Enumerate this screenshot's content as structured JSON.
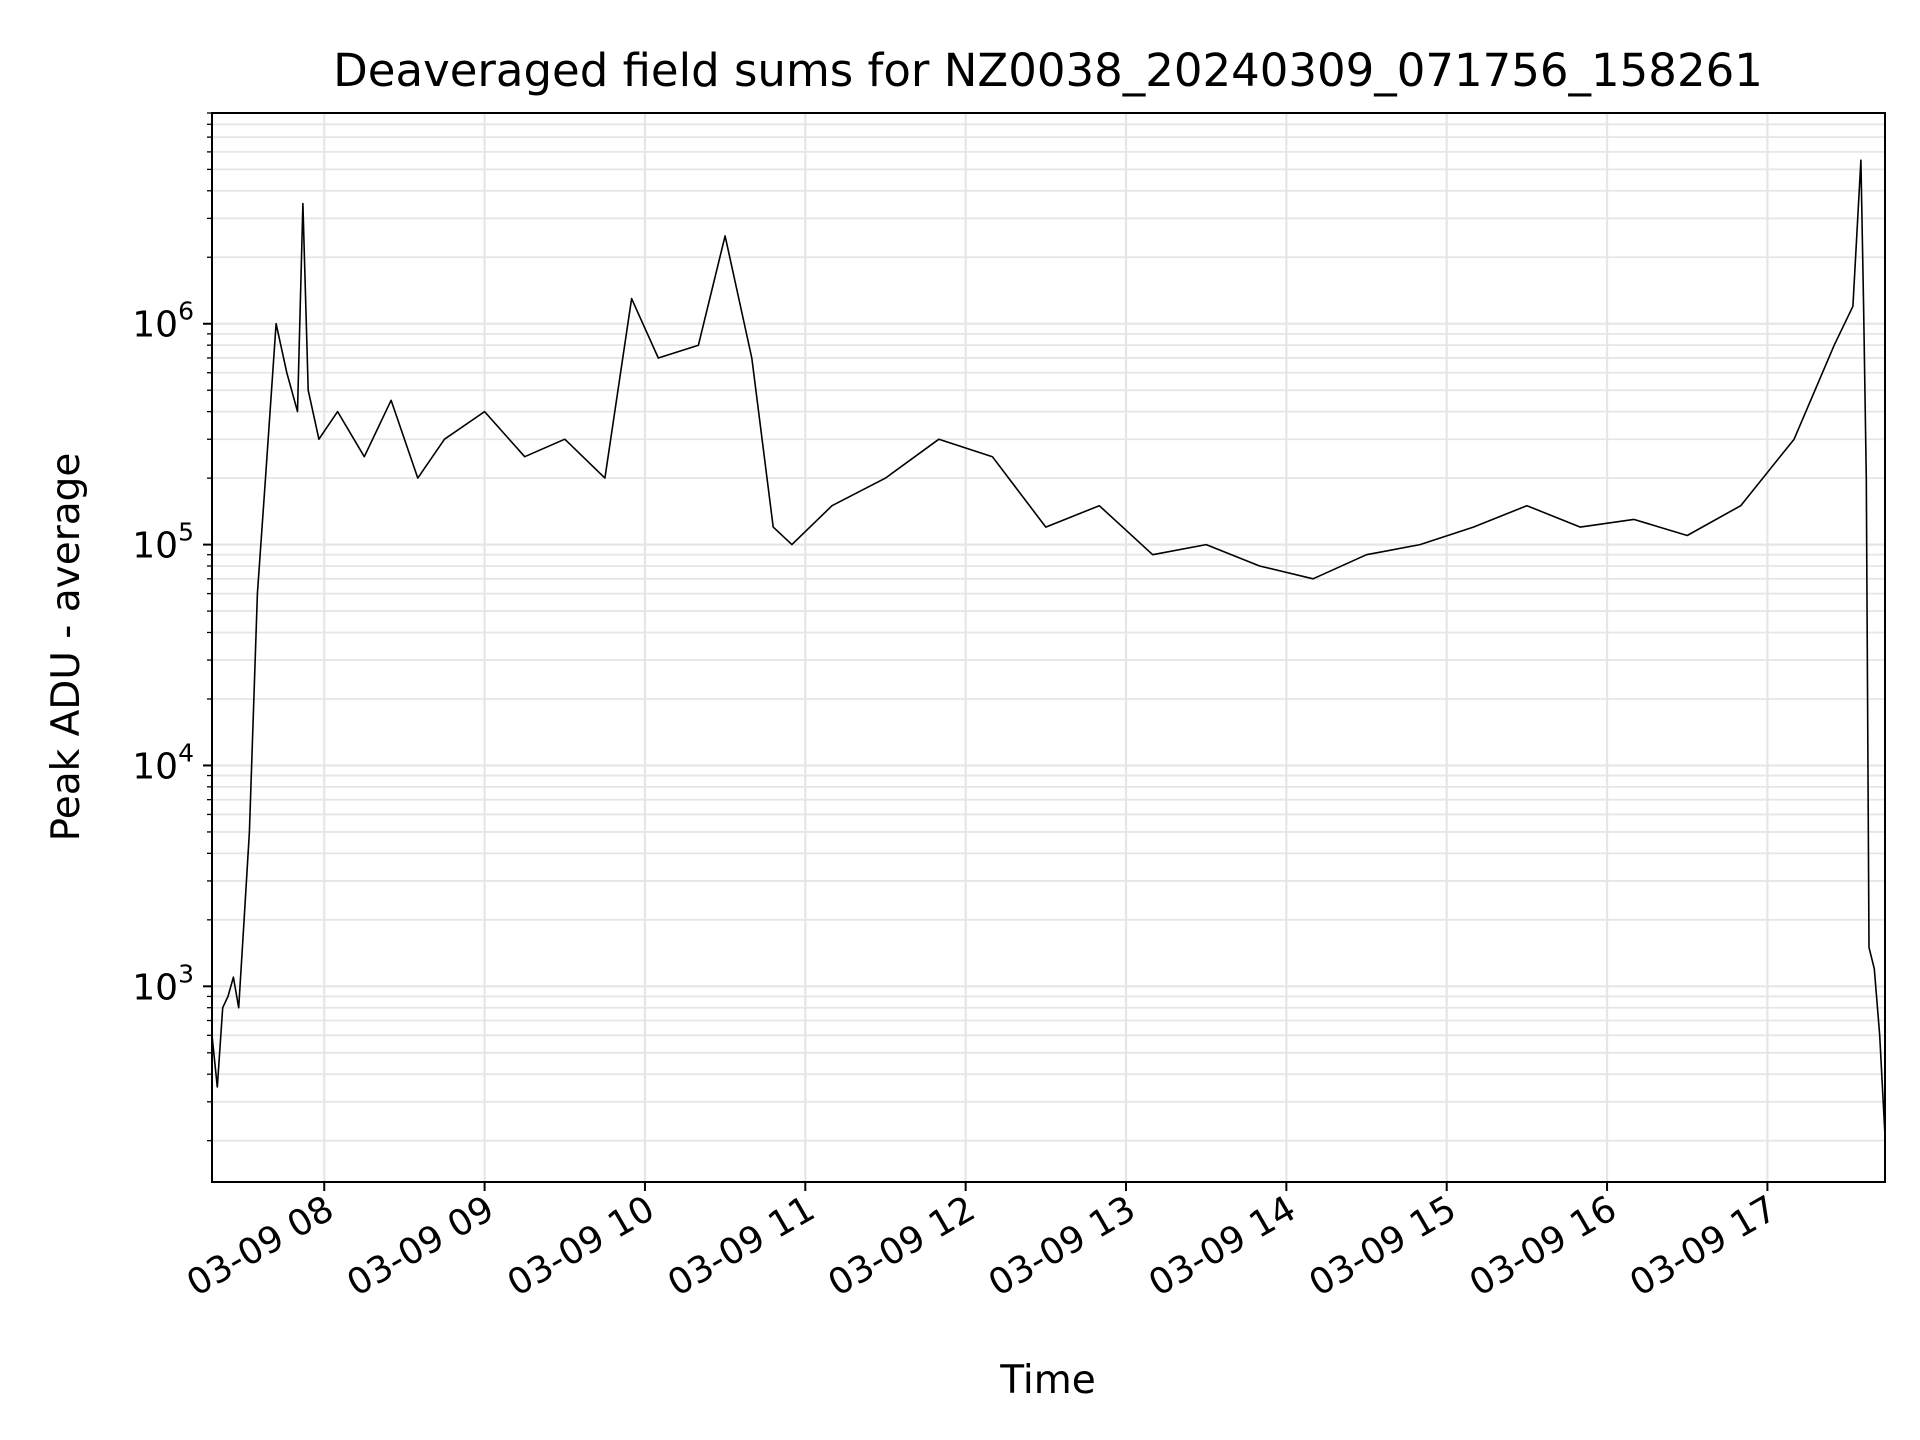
{
  "chart_data": {
    "type": "line",
    "title": "Deaveraged field sums for NZ0038_20240309_071756_158261",
    "xlabel": "Time",
    "ylabel": "Peak ADU - average",
    "y_scale": "log",
    "ylim": [
      130,
      9000000
    ],
    "xlim": [
      "2024-03-09T07:18:00",
      "2024-03-09T17:44:00"
    ],
    "x_ticks": [
      {
        "t": "2024-03-09T08:00:00",
        "label": "03-09 08"
      },
      {
        "t": "2024-03-09T09:00:00",
        "label": "03-09 09"
      },
      {
        "t": "2024-03-09T10:00:00",
        "label": "03-09 10"
      },
      {
        "t": "2024-03-09T11:00:00",
        "label": "03-09 11"
      },
      {
        "t": "2024-03-09T12:00:00",
        "label": "03-09 12"
      },
      {
        "t": "2024-03-09T13:00:00",
        "label": "03-09 13"
      },
      {
        "t": "2024-03-09T14:00:00",
        "label": "03-09 14"
      },
      {
        "t": "2024-03-09T15:00:00",
        "label": "03-09 15"
      },
      {
        "t": "2024-03-09T16:00:00",
        "label": "03-09 16"
      },
      {
        "t": "2024-03-09T17:00:00",
        "label": "03-09 17"
      }
    ],
    "y_ticks": [
      {
        "value": 1000,
        "base": "10",
        "exp": "3"
      },
      {
        "value": 10000,
        "base": "10",
        "exp": "4"
      },
      {
        "value": 100000,
        "base": "10",
        "exp": "5"
      },
      {
        "value": 1000000,
        "base": "10",
        "exp": "6"
      }
    ],
    "grid": true,
    "grid_minor": true,
    "line_color": "#000000",
    "grid_color": "#e6e6e6",
    "series": [
      {
        "x": [
          "2024-03-09T07:18:00",
          "2024-03-09T07:20:00",
          "2024-03-09T07:22:00",
          "2024-03-09T07:24:00",
          "2024-03-09T07:26:00",
          "2024-03-09T07:28:00",
          "2024-03-09T07:30:00",
          "2024-03-09T07:32:00",
          "2024-03-09T07:35:00",
          "2024-03-09T07:38:00",
          "2024-03-09T07:42:00",
          "2024-03-09T07:46:00",
          "2024-03-09T07:50:00",
          "2024-03-09T07:52:00",
          "2024-03-09T07:54:00",
          "2024-03-09T07:58:00",
          "2024-03-09T08:05:00",
          "2024-03-09T08:15:00",
          "2024-03-09T08:25:00",
          "2024-03-09T08:35:00",
          "2024-03-09T08:45:00",
          "2024-03-09T09:00:00",
          "2024-03-09T09:15:00",
          "2024-03-09T09:30:00",
          "2024-03-09T09:45:00",
          "2024-03-09T09:55:00",
          "2024-03-09T10:05:00",
          "2024-03-09T10:20:00",
          "2024-03-09T10:30:00",
          "2024-03-09T10:40:00",
          "2024-03-09T10:48:00",
          "2024-03-09T10:55:00",
          "2024-03-09T11:10:00",
          "2024-03-09T11:30:00",
          "2024-03-09T11:50:00",
          "2024-03-09T12:10:00",
          "2024-03-09T12:30:00",
          "2024-03-09T12:50:00",
          "2024-03-09T13:10:00",
          "2024-03-09T13:30:00",
          "2024-03-09T13:50:00",
          "2024-03-09T14:10:00",
          "2024-03-09T14:30:00",
          "2024-03-09T14:50:00",
          "2024-03-09T15:10:00",
          "2024-03-09T15:30:00",
          "2024-03-09T15:50:00",
          "2024-03-09T16:10:00",
          "2024-03-09T16:30:00",
          "2024-03-09T16:50:00",
          "2024-03-09T17:10:00",
          "2024-03-09T17:25:00",
          "2024-03-09T17:32:00",
          "2024-03-09T17:35:00",
          "2024-03-09T17:36:00",
          "2024-03-09T17:37:00",
          "2024-03-09T17:38:00",
          "2024-03-09T17:40:00",
          "2024-03-09T17:42:00",
          "2024-03-09T17:44:00"
        ],
        "y": [
          600,
          350,
          800,
          900,
          1100,
          800,
          2000,
          5000,
          60000,
          200000,
          1000000,
          600000,
          400000,
          3500000,
          500000,
          300000,
          400000,
          250000,
          450000,
          200000,
          300000,
          400000,
          250000,
          300000,
          200000,
          1300000,
          700000,
          800000,
          2500000,
          700000,
          120000,
          100000,
          150000,
          200000,
          300000,
          250000,
          120000,
          150000,
          90000,
          100000,
          80000,
          70000,
          90000,
          100000,
          120000,
          150000,
          120000,
          130000,
          110000,
          150000,
          300000,
          800000,
          1200000,
          5500000,
          1200000,
          200000,
          1500,
          1200,
          600,
          210
        ]
      }
    ]
  }
}
